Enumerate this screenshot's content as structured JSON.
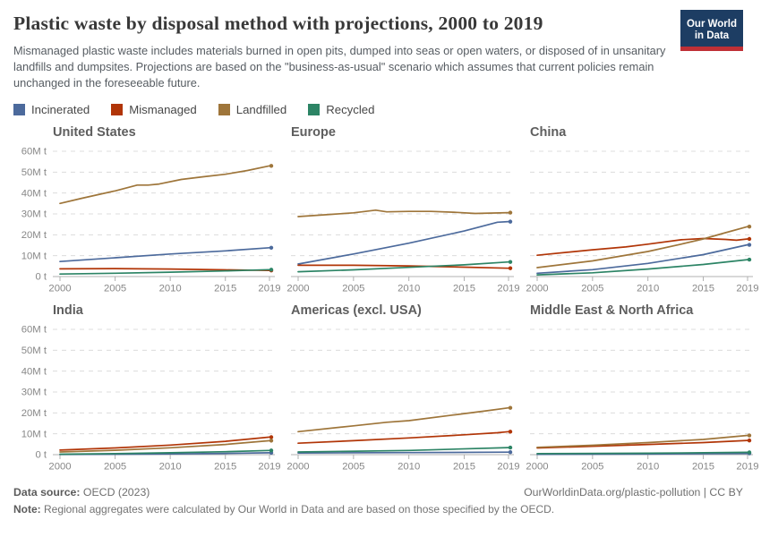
{
  "header": {
    "title": "Plastic waste by disposal method with projections, 2000 to 2019",
    "subtitle": "Mismanaged plastic waste includes materials burned in open pits, dumped into seas or open waters, or disposed of in unsanitary landfills and dumpsites. Projections are based on the \"business-as-usual\" scenario which assumes that current policies remain unchanged in the foreseeable future.",
    "logo": {
      "line1": "Our World",
      "line2": "in Data",
      "bg": "#1d3d63",
      "stripe": "#bf3036"
    }
  },
  "legend": {
    "items": [
      {
        "label": "Incinerated",
        "color": "#4C6A9C"
      },
      {
        "label": "Mismanaged",
        "color": "#B13507"
      },
      {
        "label": "Landfilled",
        "color": "#9E753A"
      },
      {
        "label": "Recycled",
        "color": "#2C8465"
      }
    ]
  },
  "chart_data": {
    "type": "line",
    "title": "Plastic waste by disposal method with projections, 2000 to 2019",
    "unit": "million tonnes",
    "ylim": [
      0,
      60
    ],
    "y_ticks": [
      "0 t",
      "10M t",
      "20M t",
      "30M t",
      "40M t",
      "50M t",
      "60M t"
    ],
    "x_ticks": [
      2000,
      2005,
      2010,
      2015,
      2019
    ],
    "xlim": [
      2000,
      2019
    ],
    "grid": "horizontal-dashed",
    "legend_position": "top",
    "series_names": [
      "Incinerated",
      "Mismanaged",
      "Landfilled",
      "Recycled"
    ],
    "panels": [
      {
        "title": "United States",
        "series": [
          {
            "name": "Incinerated",
            "points": [
              [
                2000,
                7.2
              ],
              [
                2005,
                9
              ],
              [
                2010,
                10.8
              ],
              [
                2015,
                12.3
              ],
              [
                2019,
                13.8
              ]
            ]
          },
          {
            "name": "Mismanaged",
            "points": [
              [
                2000,
                3.7
              ],
              [
                2005,
                3.8
              ],
              [
                2010,
                3.6
              ],
              [
                2015,
                3.2
              ],
              [
                2019,
                2.9
              ]
            ]
          },
          {
            "name": "Landfilled",
            "points": [
              [
                2000,
                35
              ],
              [
                2002,
                37.5
              ],
              [
                2005,
                41
              ],
              [
                2007,
                43.8
              ],
              [
                2008,
                43.8
              ],
              [
                2009,
                44.3
              ],
              [
                2011,
                46.5
              ],
              [
                2013,
                47.8
              ],
              [
                2015,
                49
              ],
              [
                2017,
                50.8
              ],
              [
                2019,
                53
              ]
            ]
          },
          {
            "name": "Recycled",
            "points": [
              [
                2000,
                1.2
              ],
              [
                2005,
                1.6
              ],
              [
                2010,
                2.1
              ],
              [
                2015,
                2.7
              ],
              [
                2019,
                3.3
              ]
            ]
          }
        ]
      },
      {
        "title": "Europe",
        "series": [
          {
            "name": "Incinerated",
            "points": [
              [
                2000,
                6
              ],
              [
                2005,
                10.8
              ],
              [
                2010,
                16
              ],
              [
                2015,
                21.8
              ],
              [
                2018,
                26
              ],
              [
                2019,
                26.3
              ]
            ]
          },
          {
            "name": "Mismanaged",
            "points": [
              [
                2000,
                5.4
              ],
              [
                2005,
                5.4
              ],
              [
                2010,
                5.1
              ],
              [
                2015,
                4.5
              ],
              [
                2019,
                4
              ]
            ]
          },
          {
            "name": "Landfilled",
            "points": [
              [
                2000,
                28.7
              ],
              [
                2003,
                29.8
              ],
              [
                2005,
                30.5
              ],
              [
                2007,
                31.8
              ],
              [
                2008,
                31
              ],
              [
                2010,
                31.2
              ],
              [
                2012,
                31.2
              ],
              [
                2014,
                30.8
              ],
              [
                2016,
                30.2
              ],
              [
                2019,
                30.6
              ]
            ]
          },
          {
            "name": "Recycled",
            "points": [
              [
                2000,
                2.3
              ],
              [
                2005,
                3.2
              ],
              [
                2010,
                4.4
              ],
              [
                2015,
                5.6
              ],
              [
                2019,
                7
              ]
            ]
          }
        ]
      },
      {
        "title": "China",
        "series": [
          {
            "name": "Incinerated",
            "points": [
              [
                2000,
                1.6
              ],
              [
                2005,
                3.3
              ],
              [
                2010,
                6.3
              ],
              [
                2015,
                10.5
              ],
              [
                2019,
                15.2
              ]
            ]
          },
          {
            "name": "Mismanaged",
            "points": [
              [
                2000,
                10.2
              ],
              [
                2005,
                12.8
              ],
              [
                2008,
                14.2
              ],
              [
                2010,
                15.5
              ],
              [
                2013,
                17.6
              ],
              [
                2015,
                18.2
              ],
              [
                2017,
                17.8
              ],
              [
                2018,
                17.4
              ],
              [
                2019,
                18
              ]
            ]
          },
          {
            "name": "Landfilled",
            "points": [
              [
                2000,
                4.3
              ],
              [
                2005,
                7.5
              ],
              [
                2010,
                12
              ],
              [
                2013,
                15.5
              ],
              [
                2015,
                18
              ],
              [
                2017,
                21
              ],
              [
                2019,
                23.9
              ]
            ]
          },
          {
            "name": "Recycled",
            "points": [
              [
                2000,
                0.8
              ],
              [
                2005,
                1.8
              ],
              [
                2010,
                3.6
              ],
              [
                2015,
                5.8
              ],
              [
                2019,
                8.1
              ]
            ]
          }
        ]
      },
      {
        "title": "India",
        "series": [
          {
            "name": "Incinerated",
            "points": [
              [
                2000,
                0.1
              ],
              [
                2005,
                0.2
              ],
              [
                2010,
                0.35
              ],
              [
                2015,
                0.6
              ],
              [
                2019,
                0.9
              ]
            ]
          },
          {
            "name": "Mismanaged",
            "points": [
              [
                2000,
                2.2
              ],
              [
                2005,
                3.2
              ],
              [
                2010,
                4.6
              ],
              [
                2015,
                6.4
              ],
              [
                2019,
                8.4
              ]
            ]
          },
          {
            "name": "Landfilled",
            "points": [
              [
                2000,
                1.3
              ],
              [
                2005,
                2.1
              ],
              [
                2010,
                3.3
              ],
              [
                2015,
                4.9
              ],
              [
                2019,
                6.7
              ]
            ]
          },
          {
            "name": "Recycled",
            "points": [
              [
                2000,
                0.2
              ],
              [
                2005,
                0.5
              ],
              [
                2010,
                0.9
              ],
              [
                2015,
                1.4
              ],
              [
                2019,
                2
              ]
            ]
          }
        ]
      },
      {
        "title": "Americas (excl. USA)",
        "series": [
          {
            "name": "Incinerated",
            "points": [
              [
                2000,
                0.8
              ],
              [
                2010,
                1
              ],
              [
                2019,
                1.2
              ]
            ]
          },
          {
            "name": "Mismanaged",
            "points": [
              [
                2000,
                5.5
              ],
              [
                2005,
                6.7
              ],
              [
                2010,
                8
              ],
              [
                2015,
                9.5
              ],
              [
                2018,
                10.5
              ],
              [
                2019,
                11
              ]
            ]
          },
          {
            "name": "Landfilled",
            "points": [
              [
                2000,
                11
              ],
              [
                2005,
                13.8
              ],
              [
                2008,
                15.5
              ],
              [
                2010,
                16.3
              ],
              [
                2014,
                19
              ],
              [
                2017,
                21
              ],
              [
                2019,
                22.4
              ]
            ]
          },
          {
            "name": "Recycled",
            "points": [
              [
                2000,
                1.3
              ],
              [
                2010,
                2
              ],
              [
                2019,
                3.4
              ]
            ]
          }
        ]
      },
      {
        "title": "Middle East & North Africa",
        "series": [
          {
            "name": "Incinerated",
            "points": [
              [
                2000,
                0.15
              ],
              [
                2010,
                0.3
              ],
              [
                2019,
                0.6
              ]
            ]
          },
          {
            "name": "Mismanaged",
            "points": [
              [
                2000,
                3.2
              ],
              [
                2005,
                4
              ],
              [
                2010,
                4.9
              ],
              [
                2015,
                5.8
              ],
              [
                2019,
                6.8
              ]
            ]
          },
          {
            "name": "Landfilled",
            "points": [
              [
                2000,
                3.5
              ],
              [
                2005,
                4.5
              ],
              [
                2010,
                5.8
              ],
              [
                2015,
                7.3
              ],
              [
                2019,
                9.2
              ]
            ]
          },
          {
            "name": "Recycled",
            "points": [
              [
                2000,
                0.5
              ],
              [
                2010,
                0.7
              ],
              [
                2019,
                1.1
              ]
            ]
          }
        ]
      }
    ],
    "style": {
      "grid_color": "#dcdcdc",
      "axis_color": "#b0b0b0",
      "tick_label_color": "#878787",
      "panel_title_color": "#5e5e5e"
    }
  },
  "footer": {
    "source_label": "Data source:",
    "source_value": " OECD (2023)",
    "link": "OurWorldinData.org/plastic-pollution | CC BY",
    "note_label": "Note:",
    "note_value": " Regional aggregates were calculated by Our World in Data and are based on those specified by the OECD."
  }
}
